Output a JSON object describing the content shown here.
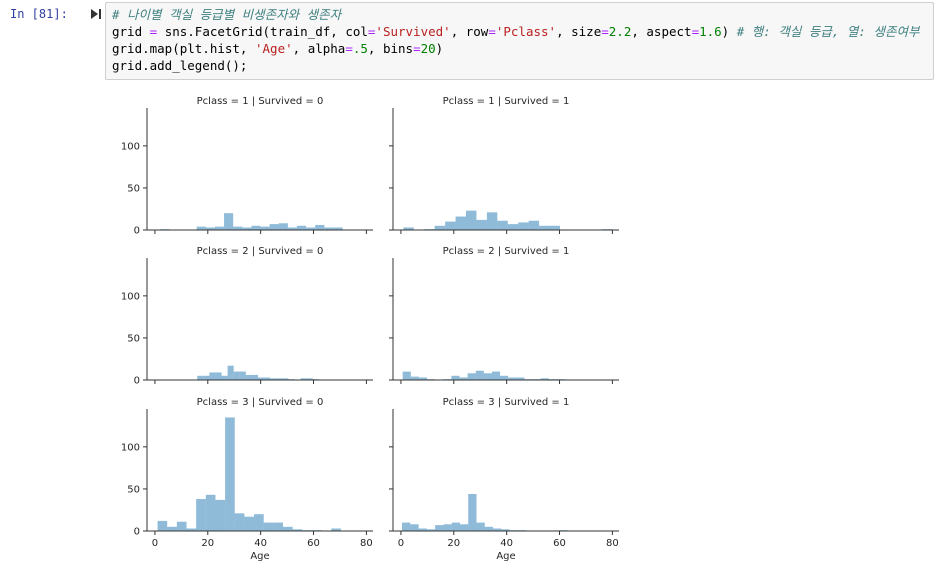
{
  "prompt": "In [81]:",
  "code": {
    "lines": [
      [
        {
          "text": "# 나이별 객실 등급별 비생존자와 생존자",
          "color": "#408080",
          "italic": true
        }
      ],
      [
        {
          "text": "grid ",
          "color": "#000000"
        },
        {
          "text": "=",
          "color": "#aa22ff"
        },
        {
          "text": " sns.FacetGrid(train_df, col",
          "color": "#000000"
        },
        {
          "text": "=",
          "color": "#aa22ff"
        },
        {
          "text": "'Survived'",
          "color": "#ba2121"
        },
        {
          "text": ", row",
          "color": "#000000"
        },
        {
          "text": "=",
          "color": "#aa22ff"
        },
        {
          "text": "'Pclass'",
          "color": "#ba2121"
        },
        {
          "text": ", size",
          "color": "#000000"
        },
        {
          "text": "=",
          "color": "#aa22ff"
        },
        {
          "text": "2.2",
          "color": "#008000"
        },
        {
          "text": ", aspect",
          "color": "#000000"
        },
        {
          "text": "=",
          "color": "#aa22ff"
        },
        {
          "text": "1.6",
          "color": "#008000"
        },
        {
          "text": ") ",
          "color": "#000000"
        },
        {
          "text": "# 행: 객실 등급, 열: 생존여부",
          "color": "#408080",
          "italic": true
        }
      ],
      [
        {
          "text": "grid.map(plt.hist, ",
          "color": "#000000"
        },
        {
          "text": "'Age'",
          "color": "#ba2121"
        },
        {
          "text": ", alpha",
          "color": "#000000"
        },
        {
          "text": "=",
          "color": "#aa22ff"
        },
        {
          "text": ".5",
          "color": "#008000"
        },
        {
          "text": ", bins",
          "color": "#000000"
        },
        {
          "text": "=",
          "color": "#aa22ff"
        },
        {
          "text": "20",
          "color": "#008000"
        },
        {
          "text": ")",
          "color": "#000000"
        }
      ],
      [
        {
          "text": "grid.add_legend();",
          "color": "#000000"
        }
      ]
    ]
  },
  "chart_data": [
    {
      "type": "histogram",
      "title": "Pclass = 1 | Survived = 0",
      "color": "#1f77b4",
      "alpha": 0.5,
      "bins": [
        2,
        5.45,
        8.9,
        12.35,
        15.8,
        19.25,
        22.7,
        26.15,
        29.6,
        33.05,
        36.5,
        39.95,
        43.4,
        46.85,
        50.3,
        53.75,
        57.2,
        60.65,
        64.1,
        67.55,
        71
      ],
      "values": [
        1,
        0,
        0,
        0,
        4,
        3,
        4,
        20,
        4,
        3,
        5,
        4,
        7,
        8,
        3,
        5,
        3,
        6,
        3,
        3
      ],
      "xlim": [
        -3,
        82.5
      ],
      "ylim": [
        0,
        145
      ],
      "xticks": [
        0,
        20,
        40,
        60,
        80
      ],
      "yticks": [
        0,
        50,
        100
      ],
      "xtick_labels": false,
      "ytick_labels": true
    },
    {
      "type": "histogram",
      "title": "Pclass = 1 | Survived = 1",
      "color": "#1f77b4",
      "alpha": 0.5,
      "bins": [
        0.92,
        4.87,
        8.82,
        12.77,
        16.72,
        20.67,
        24.62,
        28.57,
        32.52,
        36.47,
        40.42,
        44.37,
        48.32,
        52.27,
        56.22,
        60.17,
        64.12,
        68.07,
        72.02,
        75.97,
        79.92
      ],
      "values": [
        3,
        0,
        1,
        5,
        10,
        16,
        23,
        12,
        21,
        11,
        7,
        9,
        11,
        5,
        5,
        0,
        0,
        0,
        0,
        1
      ],
      "xlim": [
        -3,
        82.5
      ],
      "ylim": [
        0,
        145
      ],
      "xticks": [
        0,
        20,
        40,
        60,
        80
      ],
      "yticks": [
        0,
        50,
        100
      ],
      "xtick_labels": false,
      "ytick_labels": false
    },
    {
      "type": "histogram",
      "title": "Pclass = 2 | Survived = 0",
      "color": "#1f77b4",
      "alpha": 0.5,
      "bins": [
        16,
        18.3,
        20.6,
        22.9,
        25.2,
        27.5,
        29.8,
        32.1,
        34.4,
        36.7,
        39,
        41.3,
        43.6,
        45.9,
        48.2,
        50.5,
        52.8,
        55.1,
        57.4,
        59.7,
        62
      ],
      "values": [
        5,
        5,
        9,
        9,
        5,
        17,
        10,
        10,
        6,
        6,
        3,
        3,
        2,
        2,
        2,
        1,
        0,
        2,
        2,
        1
      ],
      "xlim": [
        -3,
        82.5
      ],
      "ylim": [
        0,
        145
      ],
      "xticks": [
        0,
        20,
        40,
        60,
        80
      ],
      "yticks": [
        0,
        50,
        100
      ],
      "xtick_labels": false,
      "ytick_labels": true
    },
    {
      "type": "histogram",
      "title": "Pclass = 2 | Survived = 1",
      "color": "#1f77b4",
      "alpha": 0.5,
      "bins": [
        0.67,
        3.74,
        6.81,
        9.88,
        12.95,
        16.02,
        19.09,
        22.16,
        25.23,
        28.3,
        31.37,
        34.44,
        37.51,
        40.58,
        43.65,
        46.72,
        49.79,
        52.86,
        55.93,
        59,
        62.07
      ],
      "values": [
        10,
        4,
        3,
        1,
        0,
        1,
        5,
        3,
        8,
        11,
        8,
        10,
        5,
        3,
        3,
        1,
        1,
        2,
        1,
        1
      ],
      "xlim": [
        -3,
        82.5
      ],
      "ylim": [
        0,
        145
      ],
      "xticks": [
        0,
        20,
        40,
        60,
        80
      ],
      "yticks": [
        0,
        50,
        100
      ],
      "xtick_labels": false,
      "ytick_labels": false
    },
    {
      "type": "histogram",
      "title": "Pclass = 3 | Survived = 0",
      "xlabel": "Age",
      "color": "#1f77b4",
      "alpha": 0.5,
      "bins": [
        1,
        4.65,
        8.3,
        11.95,
        15.6,
        19.25,
        22.9,
        26.55,
        30.2,
        33.85,
        37.5,
        41.15,
        44.8,
        48.45,
        52.1,
        55.75,
        59.4,
        63.05,
        66.7,
        70.35,
        74
      ],
      "values": [
        12,
        5,
        11,
        3,
        38,
        43,
        37,
        135,
        21,
        17,
        20,
        10,
        10,
        5,
        2,
        1,
        1,
        0,
        3,
        0
      ],
      "xlim": [
        -3,
        82.5
      ],
      "ylim": [
        0,
        145
      ],
      "xticks": [
        0,
        20,
        40,
        60,
        80
      ],
      "yticks": [
        0,
        50,
        100
      ],
      "xtick_labels": true,
      "ytick_labels": true
    },
    {
      "type": "histogram",
      "title": "Pclass = 3 | Survived = 1",
      "xlabel": "Age",
      "color": "#1f77b4",
      "alpha": 0.5,
      "bins": [
        0.42,
        3.55,
        6.68,
        9.81,
        12.94,
        16.07,
        19.2,
        22.33,
        25.46,
        28.59,
        31.72,
        34.85,
        37.98,
        41.11,
        44.24,
        47.37,
        50.5,
        53.63,
        56.76,
        59.89,
        63.02
      ],
      "values": [
        10,
        8,
        3,
        2,
        7,
        8,
        10,
        8,
        44,
        10,
        5,
        3,
        2,
        1,
        1,
        0,
        0,
        0,
        0,
        1
      ],
      "xlim": [
        -3,
        82.5
      ],
      "ylim": [
        0,
        145
      ],
      "xticks": [
        0,
        20,
        40,
        60,
        80
      ],
      "yticks": [
        0,
        50,
        100
      ],
      "xtick_labels": true,
      "ytick_labels": false
    }
  ]
}
